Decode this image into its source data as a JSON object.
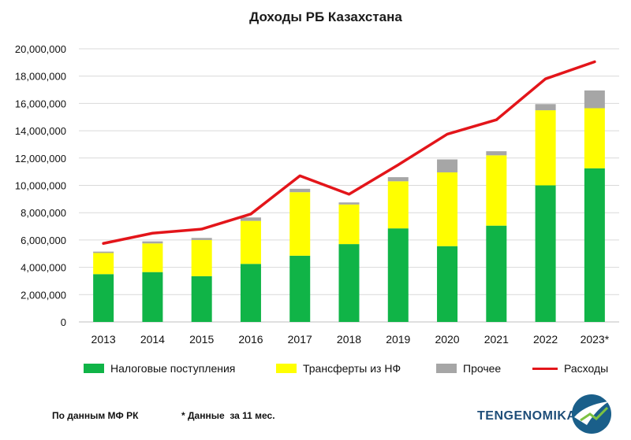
{
  "title": "Доходы РБ Казахстана",
  "chart_data": {
    "type": "bar",
    "stacked": true,
    "categories": [
      "2013",
      "2014",
      "2015",
      "2016",
      "2017",
      "2018",
      "2019",
      "2020",
      "2021",
      "2022",
      "2023*"
    ],
    "series": [
      {
        "name": "Налоговые поступления",
        "color": "#10b447",
        "values": [
          3500000,
          3650000,
          3350000,
          4250000,
          4850000,
          5700000,
          6850000,
          5550000,
          7050000,
          10000000,
          11250000
        ]
      },
      {
        "name": "Трансферты из НФ",
        "color": "#ffff00",
        "values": [
          1550000,
          2100000,
          2650000,
          3150000,
          4650000,
          2900000,
          3450000,
          5400000,
          5150000,
          5500000,
          4400000
        ]
      },
      {
        "name": "Прочее",
        "color": "#a6a6a6",
        "values": [
          100000,
          150000,
          150000,
          250000,
          250000,
          150000,
          300000,
          950000,
          300000,
          450000,
          1300000
        ]
      }
    ],
    "line_series": {
      "name": "Расходы",
      "color": "#e3151a",
      "values": [
        5750000,
        6500000,
        6800000,
        7900000,
        10700000,
        9350000,
        11500000,
        13750000,
        14800000,
        17800000,
        19050000
      ]
    },
    "ylim": [
      0,
      20000000
    ],
    "yticks": [
      "0",
      "2,000,000",
      "4,000,000",
      "6,000,000",
      "8,000,000",
      "10,000,000",
      "12,000,000",
      "14,000,000",
      "16,000,000",
      "18,000,000",
      "20,000,000"
    ],
    "grid": true,
    "legend_position": "bottom"
  },
  "legend": {
    "tax": "Налоговые поступления",
    "transfers": "Трансферты из НФ",
    "other": "Прочее",
    "expenses": "Расходы"
  },
  "footer": {
    "source": "По данным МФ РК",
    "note": "* Данные  за 11 мес.",
    "brand": "TENGENOMIKA"
  }
}
